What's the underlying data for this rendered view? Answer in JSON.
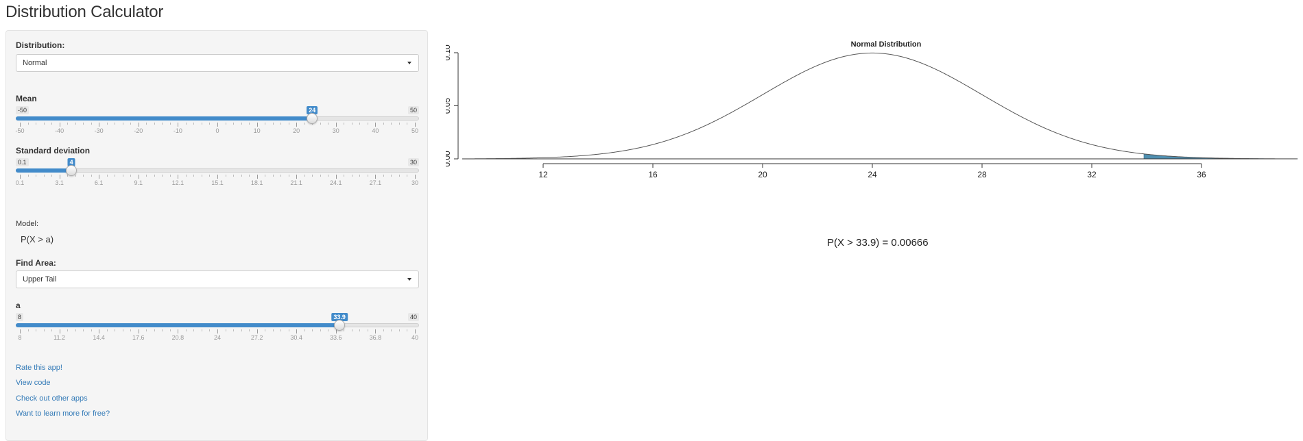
{
  "app": {
    "title": "Distribution Calculator"
  },
  "distribution": {
    "label": "Distribution:",
    "selected": "Normal"
  },
  "mean": {
    "label": "Mean",
    "min": -50,
    "max": 50,
    "value": 24,
    "min_label": "-50",
    "max_label": "50",
    "value_label": "24",
    "ticks": [
      "-50",
      "-40",
      "-30",
      "-20",
      "-10",
      "0",
      "10",
      "20",
      "30",
      "40",
      "50"
    ]
  },
  "sd": {
    "label": "Standard deviation",
    "min": 0.1,
    "max": 30,
    "value": 4,
    "min_label": "0.1",
    "max_label": "30",
    "value_label": "4",
    "ticks": [
      "0.1",
      "3.1",
      "6.1",
      "9.1",
      "12.1",
      "15.1",
      "18.1",
      "21.1",
      "24.1",
      "27.1",
      "30"
    ]
  },
  "model": {
    "label": "Model:",
    "value": "P(X > a)"
  },
  "find_area": {
    "label": "Find Area:",
    "selected": "Upper Tail"
  },
  "a": {
    "label": "a",
    "min": 8,
    "max": 40,
    "value": 33.9,
    "min_label": "8",
    "max_label": "40",
    "value_label": "33.9",
    "ticks": [
      "8",
      "11.2",
      "14.4",
      "17.6",
      "20.8",
      "24",
      "27.2",
      "30.4",
      "33.6",
      "36.8",
      "40"
    ]
  },
  "links": [
    "Rate this app!",
    "View code",
    "Check out other apps",
    "Want to learn more for free?"
  ],
  "result": {
    "text": "P(X > 33.9) = 0.00666"
  },
  "colors": {
    "accent": "#428bca",
    "shade": "#4f8fb0",
    "link": "#337ab7"
  },
  "chart_data": {
    "type": "area",
    "title": "Normal Distribution",
    "xlabel": "",
    "ylabel": "",
    "mean": 24,
    "sd": 4,
    "xlim": [
      9.5,
      39.5
    ],
    "ylim": [
      0,
      0.1
    ],
    "x_ticks": [
      12,
      16,
      20,
      24,
      28,
      32,
      36
    ],
    "y_ticks": [
      "0.00",
      "0.05",
      "0.10"
    ],
    "shaded_from": 33.9,
    "shaded_probability": 0.00666
  }
}
